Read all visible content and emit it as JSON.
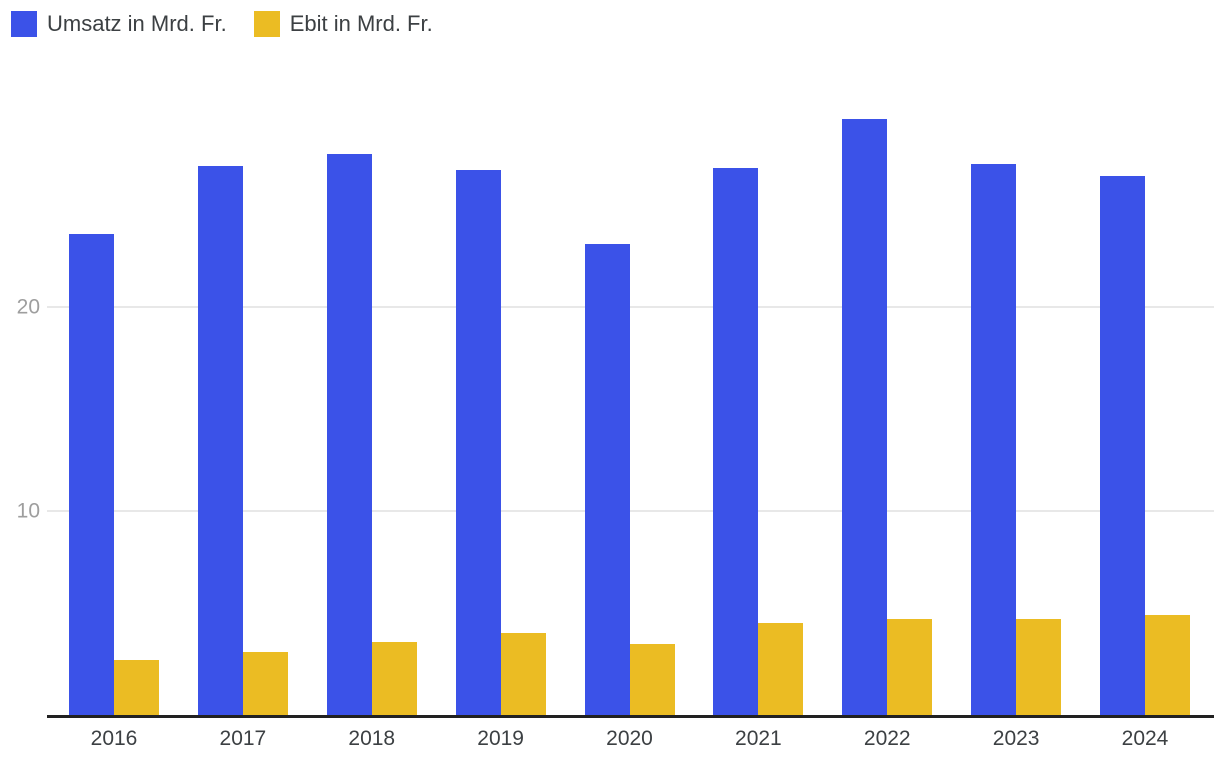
{
  "legend": {
    "items": [
      {
        "label": "Umsatz in Mrd. Fr.",
        "color": "#3B52E8"
      },
      {
        "label": "Ebit in Mrd. Fr.",
        "color": "#EBBC23"
      }
    ]
  },
  "chart_data": {
    "type": "bar",
    "categories": [
      "2016",
      "2017",
      "2018",
      "2019",
      "2020",
      "2021",
      "2022",
      "2023",
      "2024"
    ],
    "series": [
      {
        "name": "Umsatz in Mrd. Fr.",
        "color": "#3B52E8",
        "values": [
          23.6,
          26.9,
          27.5,
          26.7,
          23.1,
          26.8,
          29.2,
          27.0,
          26.4
        ]
      },
      {
        "name": "Ebit in Mrd. Fr.",
        "color": "#EBBC23",
        "values": [
          2.7,
          3.1,
          3.6,
          4.0,
          3.5,
          4.5,
          4.7,
          4.7,
          4.9
        ]
      }
    ],
    "xlabel": "",
    "ylabel": "",
    "y_ticks": [
      10,
      20
    ],
    "y_tick_labels": [
      "10",
      "20"
    ],
    "ylim": [
      0,
      30
    ],
    "grid": "horizontal",
    "legend_position": "top-left",
    "colors": {
      "gridline": "#e8e8e8",
      "axis_line": "#212121",
      "y_tick_label": "#9e9e9e",
      "x_tick_label": "#3c4043",
      "legend_text": "#3c4043",
      "background": "#ffffff"
    }
  }
}
